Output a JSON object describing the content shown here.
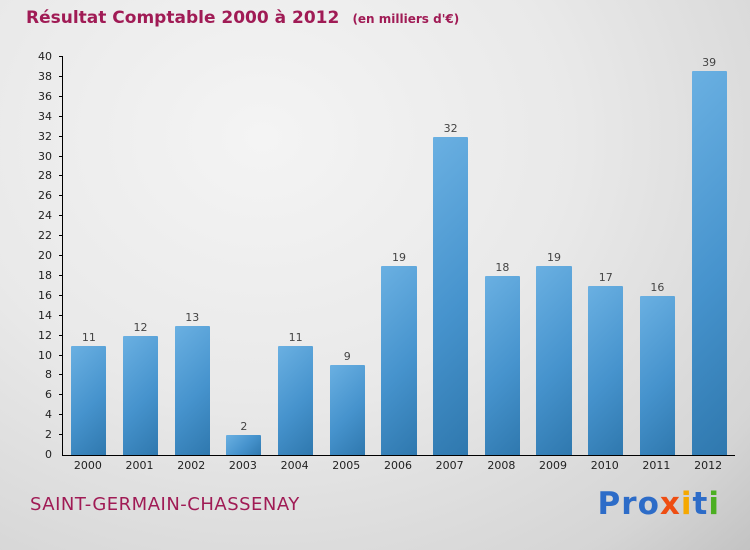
{
  "header": {
    "title": "Résultat Comptable 2000 à 2012",
    "subtitle": "(en milliers d'€)"
  },
  "footer": {
    "place": "SAINT-GERMAIN-CHASSENAY"
  },
  "logo": {
    "letters": [
      {
        "ch": "P",
        "color": "#2d6cc8"
      },
      {
        "ch": "r",
        "color": "#2d6cc8"
      },
      {
        "ch": "o",
        "color": "#2d6cc8"
      },
      {
        "ch": "x",
        "color": "#ee4d12"
      },
      {
        "ch": "i",
        "color": "#f5a800"
      },
      {
        "ch": "t",
        "color": "#2d6cc8"
      },
      {
        "ch": "i",
        "color": "#4caf22"
      }
    ]
  },
  "colors": {
    "heading": "#a01b55",
    "bar_light": "#6ab0e2",
    "bar_mid": "#4693cd",
    "bar_dark": "#2f78ae",
    "axis_text": "#222222",
    "value_text": "#444444"
  },
  "chart_data": {
    "type": "bar",
    "title": "Résultat Comptable 2000 à 2012",
    "subtitle": "(en milliers d'€)",
    "categories": [
      "2000",
      "2001",
      "2002",
      "2003",
      "2004",
      "2005",
      "2006",
      "2007",
      "2008",
      "2009",
      "2010",
      "2011",
      "2012"
    ],
    "values": [
      11,
      12,
      13,
      2,
      11,
      9,
      19,
      32,
      18,
      19,
      17,
      16,
      39
    ],
    "xlabel": "",
    "ylabel": "",
    "ylim": [
      0,
      40
    ],
    "ytick_step": 2,
    "grid": false,
    "legend": false
  }
}
